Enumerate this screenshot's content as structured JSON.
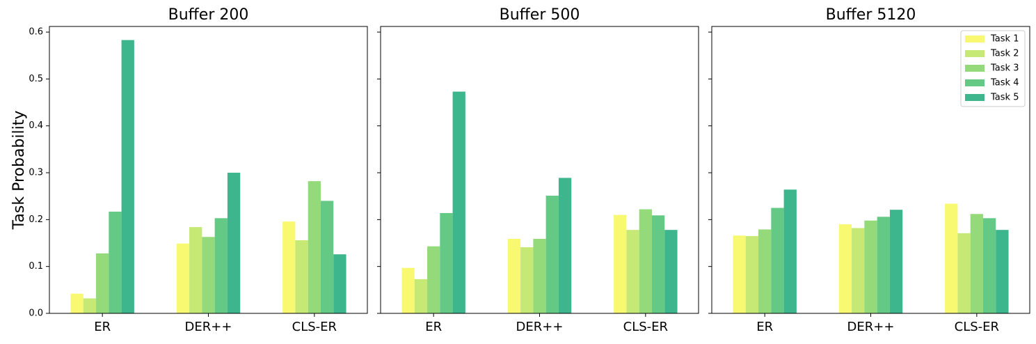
{
  "ylabel": "Task Probability",
  "yticks": [
    "0.0",
    "0.1",
    "0.2",
    "0.3",
    "0.4",
    "0.5",
    "0.6"
  ],
  "legend": {
    "placement": "top-right of third panel",
    "entries": [
      "Task 1",
      "Task 2",
      "Task 3",
      "Task 4",
      "Task 5"
    ]
  },
  "colors": [
    "#f9f871",
    "#c6e976",
    "#95da7a",
    "#64c985",
    "#3db58d"
  ],
  "chart_data": [
    {
      "type": "bar",
      "title": "Buffer 200",
      "categories": [
        "ER",
        "DER++",
        "CLS-ER"
      ],
      "ylim": [
        0,
        0.612
      ],
      "ylabel": "Task Probability",
      "series": [
        {
          "name": "Task 1",
          "values": [
            0.042,
            0.149,
            0.196
          ]
        },
        {
          "name": "Task 2",
          "values": [
            0.032,
            0.184,
            0.156
          ]
        },
        {
          "name": "Task 3",
          "values": [
            0.128,
            0.163,
            0.282
          ]
        },
        {
          "name": "Task 4",
          "values": [
            0.217,
            0.203,
            0.24
          ]
        },
        {
          "name": "Task 5",
          "values": [
            0.583,
            0.3,
            0.126
          ]
        }
      ]
    },
    {
      "type": "bar",
      "title": "Buffer 500",
      "categories": [
        "ER",
        "DER++",
        "CLS-ER"
      ],
      "ylim": [
        0,
        0.612
      ],
      "series": [
        {
          "name": "Task 1",
          "values": [
            0.097,
            0.159,
            0.21
          ]
        },
        {
          "name": "Task 2",
          "values": [
            0.073,
            0.141,
            0.178
          ]
        },
        {
          "name": "Task 3",
          "values": [
            0.143,
            0.159,
            0.222
          ]
        },
        {
          "name": "Task 4",
          "values": [
            0.214,
            0.251,
            0.209
          ]
        },
        {
          "name": "Task 5",
          "values": [
            0.473,
            0.289,
            0.178
          ]
        }
      ]
    },
    {
      "type": "bar",
      "title": "Buffer 5120",
      "categories": [
        "ER",
        "DER++",
        "CLS-ER"
      ],
      "ylim": [
        0,
        0.612
      ],
      "series": [
        {
          "name": "Task 1",
          "values": [
            0.166,
            0.19,
            0.234
          ]
        },
        {
          "name": "Task 2",
          "values": [
            0.165,
            0.182,
            0.171
          ]
        },
        {
          "name": "Task 3",
          "values": [
            0.179,
            0.198,
            0.212
          ]
        },
        {
          "name": "Task 4",
          "values": [
            0.225,
            0.206,
            0.203
          ]
        },
        {
          "name": "Task 5",
          "values": [
            0.264,
            0.221,
            0.178
          ]
        }
      ]
    }
  ]
}
